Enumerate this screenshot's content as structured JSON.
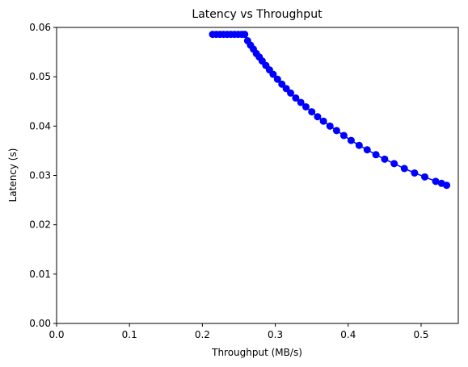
{
  "chart_data": {
    "type": "line",
    "title": "Latency vs Throughput",
    "x_label": "Throughput (MB/s)",
    "y_label": "Latency (s)",
    "series": [
      {
        "name": "Latency",
        "color": "#0000ff",
        "marker": "o",
        "x": [
          0.214,
          0.219,
          0.224,
          0.229,
          0.234,
          0.239,
          0.244,
          0.249,
          0.254,
          0.258,
          0.262,
          0.266,
          0.27,
          0.274,
          0.278,
          0.282,
          0.287,
          0.292,
          0.297,
          0.303,
          0.309,
          0.315,
          0.321,
          0.328,
          0.335,
          0.342,
          0.35,
          0.358,
          0.366,
          0.375,
          0.384,
          0.394,
          0.404,
          0.415,
          0.426,
          0.438,
          0.45,
          0.463,
          0.477,
          0.491,
          0.505,
          0.52,
          0.528,
          0.535
        ],
        "values": [
          0.0586,
          0.0586,
          0.0586,
          0.0586,
          0.0586,
          0.0586,
          0.0586,
          0.0586,
          0.0586,
          0.0586,
          0.0573,
          0.0564,
          0.0556,
          0.0547,
          0.054,
          0.0532,
          0.0523,
          0.0514,
          0.0505,
          0.0495,
          0.0485,
          0.0476,
          0.0467,
          0.0457,
          0.0448,
          0.0439,
          0.0429,
          0.0419,
          0.041,
          0.04,
          0.0391,
          0.0381,
          0.0371,
          0.0361,
          0.0352,
          0.0342,
          0.0333,
          0.0324,
          0.0314,
          0.0305,
          0.0297,
          0.0288,
          0.0284,
          0.028
        ]
      }
    ],
    "xlim": [
      0,
      0.551
    ],
    "ylim": [
      0,
      0.06
    ],
    "xticks": [
      {
        "value": 0,
        "label": "0.0"
      },
      0.1,
      0.2,
      0.3,
      0.4,
      0.5
    ],
    "yticks": [
      {
        "value": 0,
        "label": "0.00"
      },
      0.01,
      0.02,
      0.03,
      0.04,
      0.05,
      {
        "value": 0.06,
        "label": "0.06"
      }
    ],
    "grid": false
  }
}
